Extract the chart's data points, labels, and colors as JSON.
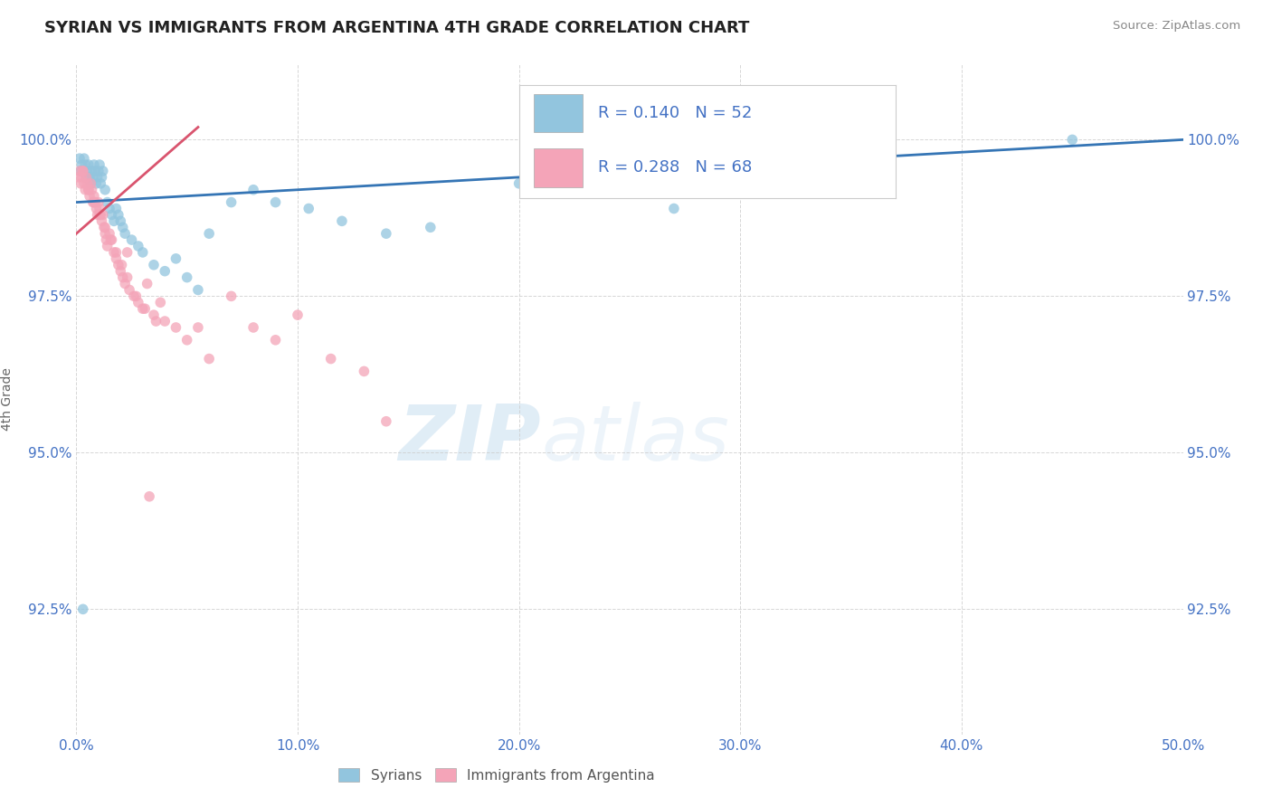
{
  "title": "SYRIAN VS IMMIGRANTS FROM ARGENTINA 4TH GRADE CORRELATION CHART",
  "source": "Source: ZipAtlas.com",
  "ylabel": "4th Grade",
  "xlim": [
    0.0,
    50.0
  ],
  "ylim": [
    90.5,
    101.2
  ],
  "yticks": [
    92.5,
    95.0,
    97.5,
    100.0
  ],
  "ytick_labels": [
    "92.5%",
    "95.0%",
    "97.5%",
    "100.0%"
  ],
  "xticks": [
    0.0,
    10.0,
    20.0,
    30.0,
    40.0,
    50.0
  ],
  "xtick_labels": [
    "0.0%",
    "10.0%",
    "20.0%",
    "30.0%",
    "40.0%",
    "50.0%"
  ],
  "blue_R": 0.14,
  "blue_N": 52,
  "pink_R": 0.288,
  "pink_N": 68,
  "blue_color": "#92c5de",
  "pink_color": "#f4a4b8",
  "blue_line_color": "#3575b5",
  "pink_line_color": "#d9546e",
  "legend_label_blue": "Syrians",
  "legend_label_pink": "Immigrants from Argentina",
  "watermark_zip": "ZIP",
  "watermark_atlas": "atlas",
  "background_color": "#ffffff",
  "tick_color": "#4472c4",
  "grid_color": "#cccccc",
  "blue_x": [
    0.15,
    0.2,
    0.25,
    0.3,
    0.35,
    0.4,
    0.45,
    0.5,
    0.55,
    0.6,
    0.65,
    0.7,
    0.75,
    0.8,
    0.85,
    0.9,
    0.95,
    1.0,
    1.05,
    1.1,
    1.15,
    1.2,
    1.3,
    1.4,
    1.5,
    1.6,
    1.7,
    1.8,
    1.9,
    2.0,
    2.1,
    2.2,
    2.5,
    2.8,
    3.0,
    3.5,
    4.0,
    4.5,
    5.0,
    5.5,
    6.0,
    7.0,
    8.0,
    9.0,
    10.5,
    12.0,
    14.0,
    16.0,
    20.0,
    27.0,
    45.0,
    0.3
  ],
  "blue_y": [
    99.7,
    99.5,
    99.6,
    99.5,
    99.7,
    99.6,
    99.4,
    99.5,
    99.6,
    99.4,
    99.3,
    99.5,
    99.4,
    99.6,
    99.5,
    99.3,
    99.4,
    99.5,
    99.6,
    99.3,
    99.4,
    99.5,
    99.2,
    99.0,
    98.9,
    98.8,
    98.7,
    98.9,
    98.8,
    98.7,
    98.6,
    98.5,
    98.4,
    98.3,
    98.2,
    98.0,
    97.9,
    98.1,
    97.8,
    97.6,
    98.5,
    99.0,
    99.2,
    99.0,
    98.9,
    98.7,
    98.5,
    98.6,
    99.3,
    98.9,
    100.0,
    92.5
  ],
  "pink_x": [
    0.1,
    0.15,
    0.2,
    0.25,
    0.3,
    0.35,
    0.4,
    0.45,
    0.5,
    0.55,
    0.6,
    0.65,
    0.7,
    0.75,
    0.8,
    0.85,
    0.9,
    0.95,
    1.0,
    1.05,
    1.1,
    1.15,
    1.2,
    1.25,
    1.3,
    1.35,
    1.4,
    1.5,
    1.6,
    1.7,
    1.8,
    1.9,
    2.0,
    2.1,
    2.2,
    2.3,
    2.4,
    2.6,
    2.8,
    3.0,
    3.2,
    3.5,
    3.8,
    4.0,
    4.5,
    5.0,
    5.5,
    6.0,
    7.0,
    8.0,
    9.0,
    10.0,
    11.5,
    13.0,
    3.3,
    0.3,
    0.55,
    0.8,
    1.05,
    1.3,
    1.55,
    1.8,
    2.05,
    2.3,
    2.7,
    3.1,
    3.6,
    14.0
  ],
  "pink_y": [
    99.4,
    99.5,
    99.3,
    99.4,
    99.5,
    99.3,
    99.2,
    99.4,
    99.3,
    99.2,
    99.1,
    99.3,
    99.2,
    99.0,
    99.1,
    99.0,
    98.9,
    98.8,
    99.0,
    98.9,
    98.8,
    98.7,
    98.8,
    98.6,
    98.5,
    98.4,
    98.3,
    98.5,
    98.4,
    98.2,
    98.1,
    98.0,
    97.9,
    97.8,
    97.7,
    98.2,
    97.6,
    97.5,
    97.4,
    97.3,
    97.7,
    97.2,
    97.4,
    97.1,
    97.0,
    96.8,
    97.0,
    96.5,
    97.5,
    97.0,
    96.8,
    97.2,
    96.5,
    96.3,
    94.3,
    99.5,
    99.2,
    99.0,
    98.8,
    98.6,
    98.4,
    98.2,
    98.0,
    97.8,
    97.5,
    97.3,
    97.1,
    95.5
  ],
  "blue_trend_x0": 0.0,
  "blue_trend_x1": 50.0,
  "blue_trend_y0": 99.0,
  "blue_trend_y1": 100.0,
  "pink_trend_x0": 0.0,
  "pink_trend_x1": 5.5,
  "pink_trend_y0": 98.5,
  "pink_trend_y1": 100.2
}
